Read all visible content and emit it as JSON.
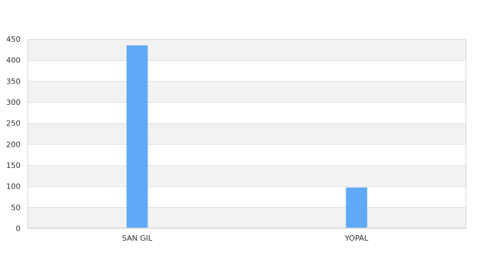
{
  "colors": {
    "bar": "#60a9f6",
    "band": "#f2f2f2",
    "gridline": "#e0e0e0",
    "frame": "#d9d9d9",
    "text": "#333333"
  },
  "chart_data": {
    "type": "bar",
    "title": "",
    "xlabel": "",
    "ylabel": "",
    "categories": [
      "SAN GIL",
      "YOPAL"
    ],
    "values": [
      435,
      97
    ],
    "ylim": [
      0,
      450
    ],
    "yticks": [
      0,
      50,
      100,
      150,
      200,
      250,
      300,
      350,
      400,
      450
    ],
    "grid": true,
    "legend": "none"
  }
}
